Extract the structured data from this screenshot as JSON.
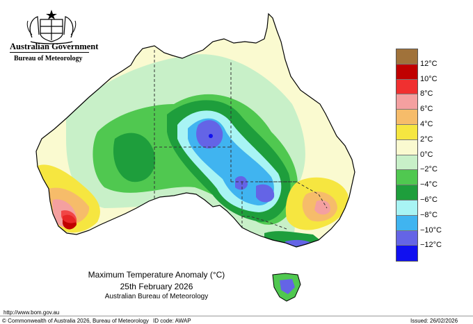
{
  "header": {
    "government": "Australian Government",
    "bureau": "Bureau of Meteorology"
  },
  "logo_icon": "coat-of-arms-icon",
  "title": {
    "line1": "Maximum Temperature Anomaly (°C)",
    "line2": "25th February 2026",
    "line3": "Australian Bureau of Meteorology"
  },
  "legend": {
    "swatches": [
      {
        "color": "#a0723a"
      },
      {
        "color": "#c00000"
      },
      {
        "color": "#f03030"
      },
      {
        "color": "#f4a0a0"
      },
      {
        "color": "#f6bc6a"
      },
      {
        "color": "#f6e640"
      },
      {
        "color": "#fafad0"
      },
      {
        "color": "#c8f0c8"
      },
      {
        "color": "#50c850"
      },
      {
        "color": "#1e9e3c"
      },
      {
        "color": "#a8f4f4"
      },
      {
        "color": "#40b4f0"
      },
      {
        "color": "#6464e6"
      },
      {
        "color": "#1010f0"
      }
    ],
    "labels": [
      "12°C",
      "10°C",
      "8°C",
      "6°C",
      "4°C",
      "2°C",
      "0°C",
      "−2°C",
      "−4°C",
      "−6°C",
      "−8°C",
      "−10°C",
      "−12°C"
    ]
  },
  "footer": {
    "url": "http://www.bom.gov.au",
    "copyright": "© Commonwealth of Australia 2026, Bureau of Meteorology",
    "id_code": "ID code: AWAP",
    "issued": "Issued: 26/02/2026"
  }
}
